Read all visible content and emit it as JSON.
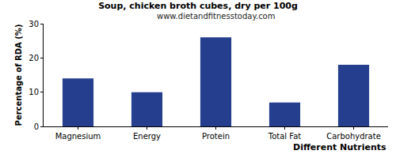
{
  "chart_data": {
    "type": "bar",
    "title": "Soup, chicken broth cubes, dry per 100g",
    "subtitle": "www.dietandfitnesstoday.com",
    "x_label": "Different Nutrients",
    "y_label": "Percentage of RDA (%)",
    "categories": [
      "Magnesium",
      "Energy",
      "Protein",
      "Total Fat",
      "Carbohydrate"
    ],
    "values": [
      14,
      10,
      26,
      7,
      18
    ],
    "color": "#253f8e",
    "ylim": [
      0,
      30
    ],
    "yticks": [
      0,
      10,
      20,
      30
    ],
    "grid": false
  }
}
